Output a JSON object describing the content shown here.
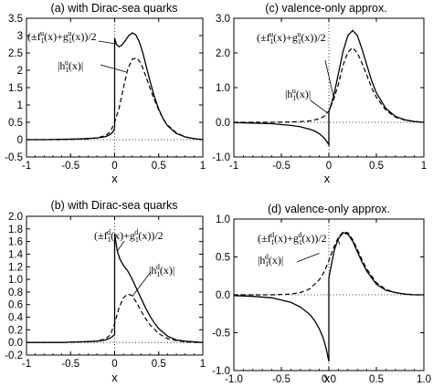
{
  "chart_data": [
    {
      "id": "a",
      "type": "line",
      "title": "(a) with Dirac-sea quarks",
      "xlabel": "x",
      "ylabel": "",
      "xlim": [
        -1,
        1
      ],
      "ylim": [
        -0.5,
        3.5
      ],
      "xticks": [
        "-1",
        "-0.5",
        "0",
        "0.5",
        "1"
      ],
      "yticks": [
        "-0.5",
        "0",
        "0.5",
        "1",
        "1.5",
        "2",
        "2.5",
        "3",
        "3.5"
      ],
      "grid": false,
      "reference_lines": [
        "x=0",
        "y=0"
      ],
      "series": [
        {
          "name": "",
          "label_parts": [
            "(±f",
            "1",
            "u",
            "(x)+g",
            "1",
            "u",
            "(x))/2"
          ],
          "style": "solid",
          "x": [
            -1,
            -0.8,
            -0.6,
            -0.4,
            -0.2,
            -0.1,
            -0.05,
            -0.02,
            -0.005,
            0,
            0,
            0.02,
            0.05,
            0.08,
            0.12,
            0.16,
            0.2,
            0.24,
            0.28,
            0.32,
            0.36,
            0.4,
            0.45,
            0.5,
            0.55,
            0.6,
            0.7,
            0.8,
            0.9,
            1
          ],
          "y": [
            0.0,
            0.0,
            0.01,
            0.02,
            0.05,
            0.09,
            0.15,
            0.22,
            0.3,
            0.33,
            2.92,
            2.75,
            2.68,
            2.72,
            2.85,
            3.0,
            3.08,
            3.02,
            2.82,
            2.5,
            2.1,
            1.7,
            1.25,
            0.88,
            0.6,
            0.4,
            0.18,
            0.08,
            0.03,
            0.0
          ]
        },
        {
          "name": "",
          "label_parts": [
            "|h",
            "1",
            "u",
            "(x)|"
          ],
          "style": "dashed",
          "x": [
            -1,
            -0.6,
            -0.3,
            -0.2,
            -0.1,
            -0.05,
            0,
            0.05,
            0.1,
            0.15,
            0.2,
            0.25,
            0.3,
            0.35,
            0.4,
            0.45,
            0.5,
            0.55,
            0.6,
            0.7,
            0.8,
            0.9,
            1
          ],
          "y": [
            0.0,
            0.0,
            0.02,
            0.05,
            0.12,
            0.22,
            0.5,
            0.9,
            1.5,
            2.05,
            2.32,
            2.36,
            2.2,
            1.85,
            1.5,
            1.15,
            0.85,
            0.6,
            0.42,
            0.2,
            0.08,
            0.03,
            0.0
          ]
        }
      ],
      "annotations": [
        {
          "target": "solid",
          "text_parts": [
            "(±f",
            "1",
            "u",
            "(x)+g",
            "1",
            "u",
            "(x))/2"
          ],
          "points_to": [
            0.02,
            2.76
          ]
        },
        {
          "target": "dashed",
          "text_parts": [
            "|h",
            "1",
            "u",
            "(x)|"
          ],
          "points_to": [
            0.13,
            1.95
          ]
        }
      ]
    },
    {
      "id": "c",
      "type": "line",
      "title": "(c) valence-only approx.",
      "xlabel": "x",
      "ylabel": "",
      "xlim": [
        -1,
        1
      ],
      "ylim": [
        -1.0,
        3.0
      ],
      "xticks": [
        "-1",
        "-0.5",
        "0",
        "0.5",
        "1"
      ],
      "yticks": [
        "-1.0",
        "0.0",
        "1.0",
        "2.0",
        "3.0"
      ],
      "grid": false,
      "reference_lines": [
        "x=0",
        "y=0"
      ],
      "series": [
        {
          "name": "",
          "label_parts": [
            "(±f",
            "1",
            "u",
            "(x)+g",
            "1",
            "u",
            "(x))/2"
          ],
          "style": "solid",
          "x": [
            -1,
            -0.8,
            -0.6,
            -0.4,
            -0.3,
            -0.2,
            -0.15,
            -0.1,
            -0.05,
            -0.02,
            0,
            0,
            0.05,
            0.1,
            0.15,
            0.2,
            0.25,
            0.3,
            0.35,
            0.4,
            0.45,
            0.5,
            0.6,
            0.7,
            0.8,
            0.9,
            1
          ],
          "y": [
            -0.01,
            -0.02,
            -0.04,
            -0.09,
            -0.13,
            -0.2,
            -0.25,
            -0.33,
            -0.45,
            -0.56,
            -0.65,
            0.3,
            0.75,
            1.4,
            2.05,
            2.5,
            2.65,
            2.5,
            2.1,
            1.65,
            1.2,
            0.85,
            0.4,
            0.17,
            0.07,
            0.02,
            0.0
          ]
        },
        {
          "name": "",
          "label_parts": [
            "|h",
            "1",
            "u",
            "(x)|"
          ],
          "style": "dashed",
          "x": [
            -1,
            -0.6,
            -0.4,
            -0.3,
            -0.2,
            -0.1,
            -0.05,
            0,
            0.05,
            0.1,
            0.15,
            0.2,
            0.25,
            0.3,
            0.35,
            0.4,
            0.45,
            0.5,
            0.6,
            0.7,
            0.8,
            0.9,
            1
          ],
          "y": [
            0.0,
            0.0,
            0.01,
            0.02,
            0.04,
            0.1,
            0.17,
            0.33,
            0.65,
            1.1,
            1.65,
            2.02,
            2.15,
            2.0,
            1.7,
            1.35,
            1.0,
            0.72,
            0.35,
            0.15,
            0.06,
            0.02,
            0.0
          ]
        }
      ],
      "annotations": [
        {
          "target": "solid",
          "text_parts": [
            "(±f",
            "1",
            "u",
            "(x)+g",
            "1",
            "u",
            "(x))/2"
          ],
          "points_to": [
            0.05,
            0.72
          ]
        },
        {
          "target": "dashed",
          "text_parts": [
            "|h",
            "1",
            "u",
            "(x)|"
          ],
          "points_to": [
            -0.02,
            0.28
          ]
        }
      ]
    },
    {
      "id": "b",
      "type": "line",
      "title": "(b) with Dirac-sea quarks",
      "xlabel": "x",
      "ylabel": "",
      "xlim": [
        -1,
        1
      ],
      "ylim": [
        -0.2,
        2.0
      ],
      "xticks": [
        "-1",
        "-0.5",
        "0",
        "0.5",
        "1"
      ],
      "yticks": [
        "-0.2",
        "0.0",
        "0.2",
        "0.4",
        "0.6",
        "0.8",
        "1.0",
        "1.2",
        "1.4",
        "1.6",
        "1.8",
        "2.0"
      ],
      "grid": false,
      "reference_lines": [
        "x=0",
        "y=0"
      ],
      "series": [
        {
          "name": "",
          "label_parts": [
            "(±f",
            "1",
            "d",
            "(x)+g",
            "1",
            "d",
            "(x))/2"
          ],
          "style": "solid",
          "x": [
            -1,
            -0.8,
            -0.6,
            -0.4,
            -0.2,
            -0.1,
            -0.05,
            -0.02,
            -0.005,
            0,
            0,
            0.03,
            0.06,
            0.1,
            0.15,
            0.2,
            0.25,
            0.3,
            0.35,
            0.4,
            0.45,
            0.5,
            0.6,
            0.7,
            0.8,
            0.9,
            1
          ],
          "y": [
            0.0,
            0.0,
            0.0,
            0.01,
            0.02,
            0.04,
            0.07,
            0.1,
            0.12,
            0.13,
            1.72,
            1.45,
            1.32,
            1.22,
            1.13,
            1.0,
            0.85,
            0.7,
            0.55,
            0.42,
            0.31,
            0.22,
            0.1,
            0.04,
            0.02,
            0.01,
            0.0
          ]
        },
        {
          "name": "",
          "label_parts": [
            "|h",
            "1",
            "d",
            "(x)|"
          ],
          "style": "dashed",
          "x": [
            -1,
            -0.6,
            -0.3,
            -0.2,
            -0.1,
            -0.05,
            0,
            0.05,
            0.1,
            0.15,
            0.2,
            0.25,
            0.3,
            0.35,
            0.4,
            0.5,
            0.6,
            0.7,
            0.8,
            0.9,
            1
          ],
          "y": [
            0.0,
            0.0,
            0.01,
            0.02,
            0.06,
            0.12,
            0.3,
            0.55,
            0.71,
            0.77,
            0.74,
            0.63,
            0.5,
            0.38,
            0.28,
            0.14,
            0.06,
            0.03,
            0.01,
            0.0,
            0.0
          ]
        }
      ],
      "annotations": [
        {
          "target": "solid",
          "text_parts": [
            "(±f",
            "1",
            "d",
            "(x)+g",
            "1",
            "d",
            "(x))/2"
          ],
          "points_to": [
            0.03,
            1.45
          ]
        },
        {
          "target": "dashed",
          "text_parts": [
            "|h",
            "1",
            "d",
            "(x)|"
          ],
          "points_to": [
            0.2,
            0.73
          ]
        }
      ]
    },
    {
      "id": "d",
      "type": "line",
      "title": "(d) valence-only approx.",
      "xlabel": "x",
      "ylabel": "",
      "xlim": [
        -1,
        1
      ],
      "ylim": [
        -1.0,
        1.0
      ],
      "xticks": [
        "-1.0",
        "-0.5",
        "0.0",
        "0.5",
        "1.0"
      ],
      "yticks": [
        "-1.0",
        "-0.5",
        "0.0",
        "0.5",
        "1.0"
      ],
      "grid": false,
      "reference_lines": [
        "x=0",
        "y=0"
      ],
      "series": [
        {
          "name": "",
          "label_parts": [
            "(±f",
            "1",
            "d",
            "(x)+g",
            "1",
            "d",
            "(x))/2"
          ],
          "style": "solid",
          "x": [
            -1,
            -0.8,
            -0.6,
            -0.4,
            -0.3,
            -0.2,
            -0.15,
            -0.1,
            -0.06,
            -0.03,
            0,
            0,
            0.03,
            0.06,
            0.1,
            0.15,
            0.2,
            0.25,
            0.3,
            0.35,
            0.4,
            0.5,
            0.6,
            0.7,
            0.8,
            0.9,
            1
          ],
          "y": [
            -0.01,
            -0.02,
            -0.04,
            -0.1,
            -0.16,
            -0.26,
            -0.34,
            -0.45,
            -0.57,
            -0.7,
            -0.88,
            0.22,
            0.42,
            0.6,
            0.74,
            0.82,
            0.8,
            0.71,
            0.57,
            0.43,
            0.31,
            0.14,
            0.06,
            0.03,
            0.01,
            0.0,
            0.0
          ]
        },
        {
          "name": "",
          "label_parts": [
            "|h",
            "1",
            "d",
            "(x)|"
          ],
          "style": "dashed",
          "x": [
            -1,
            -0.6,
            -0.4,
            -0.3,
            -0.2,
            -0.1,
            -0.05,
            0,
            0.05,
            0.1,
            0.15,
            0.2,
            0.25,
            0.3,
            0.35,
            0.4,
            0.5,
            0.6,
            0.7,
            0.8,
            0.9,
            1
          ],
          "y": [
            0.0,
            0.0,
            0.01,
            0.03,
            0.08,
            0.2,
            0.3,
            0.45,
            0.62,
            0.76,
            0.83,
            0.82,
            0.73,
            0.6,
            0.46,
            0.34,
            0.16,
            0.07,
            0.03,
            0.01,
            0.0,
            0.0
          ]
        }
      ],
      "annotations": [
        {
          "target": "solid",
          "text_parts": [
            "(±f",
            "1",
            "d",
            "(x)+g",
            "1",
            "d",
            "(x))/2"
          ],
          "points_to": [
            0.1,
            0.72
          ]
        },
        {
          "target": "dashed",
          "text_parts": [
            "|h",
            "1",
            "d",
            "(x)|"
          ],
          "points_to": [
            -0.1,
            0.55
          ]
        }
      ]
    }
  ]
}
